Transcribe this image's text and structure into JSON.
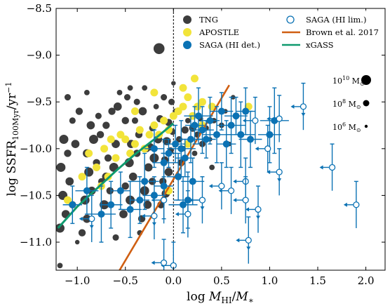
{
  "chart_data": {
    "type": "scatter",
    "xlabel": "log M_HI/M_*",
    "ylabel": "log SSFR_100Myr/yr^-1",
    "xlim": [
      -1.22,
      2.2
    ],
    "ylim": [
      -11.3,
      -8.5
    ],
    "xticks": [
      "−1.0",
      "−0.5",
      "0.0",
      "0.5",
      "1.0",
      "1.5",
      "2.0"
    ],
    "xtick_values": [
      -1.0,
      -0.5,
      0.0,
      0.5,
      1.0,
      1.5,
      2.0
    ],
    "yticks": [
      "−8.5",
      "−9.0",
      "−9.5",
      "−10.0",
      "−10.5",
      "−11.0"
    ],
    "ytick_values": [
      -8.5,
      -9.0,
      -9.5,
      -10.0,
      -10.5,
      -11.0
    ],
    "grid": false,
    "legend_position": "top-right",
    "vertical_reference_line": 0.0,
    "legend": [
      "TNG",
      "APOSTLE",
      "SAGA (HI det.)",
      "SAGA (HI lim.)",
      "Brown et al. 2017",
      "xGASS"
    ],
    "colors": {
      "TNG": "#3d3d3d",
      "APOSTLE": "#f2e43a",
      "SAGA": "#0b72b4",
      "Brown": "#d05f12",
      "xGASS": "#0f9a6e"
    },
    "size_legend": [
      "10^10 M_⊙",
      "10^8 M_⊙",
      "10^6 M_⊙"
    ],
    "series": [
      {
        "name": "TNG",
        "marker": "filled-circle",
        "points": [
          [
            -1.18,
            -10.85
          ],
          [
            -1.12,
            -10.7
          ],
          [
            -1.05,
            -10.6
          ],
          [
            -1.15,
            -10.5
          ],
          [
            -1.08,
            -10.35
          ],
          [
            -1.17,
            -10.2
          ],
          [
            -1.1,
            -10.05
          ],
          [
            -1.02,
            -9.95
          ],
          [
            -1.14,
            -9.9
          ],
          [
            -1.05,
            -9.7
          ],
          [
            -0.98,
            -9.6
          ],
          [
            -1.1,
            -9.45
          ],
          [
            -0.95,
            -10.9
          ],
          [
            -0.9,
            -10.75
          ],
          [
            -0.92,
            -10.55
          ],
          [
            -0.85,
            -10.45
          ],
          [
            -0.88,
            -10.25
          ],
          [
            -0.8,
            -10.15
          ],
          [
            -0.9,
            -10.05
          ],
          [
            -0.83,
            -9.9
          ],
          [
            -0.76,
            -9.85
          ],
          [
            -0.86,
            -9.75
          ],
          [
            -0.78,
            -9.65
          ],
          [
            -0.7,
            -9.75
          ],
          [
            -0.72,
            -10.6
          ],
          [
            -0.66,
            -10.45
          ],
          [
            -0.7,
            -10.3
          ],
          [
            -0.62,
            -10.2
          ],
          [
            -0.68,
            -10.1
          ],
          [
            -0.6,
            -9.95
          ],
          [
            -0.55,
            -9.85
          ],
          [
            -0.64,
            -9.6
          ],
          [
            -0.58,
            -9.55
          ],
          [
            -0.5,
            -9.7
          ],
          [
            -0.48,
            -9.45
          ],
          [
            -0.56,
            -9.4
          ],
          [
            -0.52,
            -10.7
          ],
          [
            -0.45,
            -10.55
          ],
          [
            -0.5,
            -10.4
          ],
          [
            -0.42,
            -10.3
          ],
          [
            -0.46,
            -10.15
          ],
          [
            -0.38,
            -10.05
          ],
          [
            -0.44,
            -9.95
          ],
          [
            -0.36,
            -9.85
          ],
          [
            -0.4,
            -9.7
          ],
          [
            -0.32,
            -9.6
          ],
          [
            -0.38,
            -9.5
          ],
          [
            -0.3,
            -9.35
          ],
          [
            -0.33,
            -10.75
          ],
          [
            -0.27,
            -10.6
          ],
          [
            -0.3,
            -10.45
          ],
          [
            -0.22,
            -10.35
          ],
          [
            -0.26,
            -10.2
          ],
          [
            -0.2,
            -10.1
          ],
          [
            -0.24,
            -9.98
          ],
          [
            -0.16,
            -9.9
          ],
          [
            -0.22,
            -9.78
          ],
          [
            -0.14,
            -9.68
          ],
          [
            -0.18,
            -9.55
          ],
          [
            -0.1,
            -9.45
          ],
          [
            -0.13,
            -10.6
          ],
          [
            -0.08,
            -10.48
          ],
          [
            -0.11,
            -10.35
          ],
          [
            -0.05,
            -10.25
          ],
          [
            -0.09,
            -10.12
          ],
          [
            -0.03,
            -10.02
          ],
          [
            -0.07,
            -9.92
          ],
          [
            -0.01,
            -9.82
          ],
          [
            -0.05,
            -9.72
          ],
          [
            0.02,
            -9.6
          ],
          [
            -0.02,
            -9.5
          ],
          [
            0.05,
            -10.3
          ],
          [
            0.08,
            -10.15
          ],
          [
            0.1,
            -10.0
          ],
          [
            0.06,
            -9.9
          ],
          [
            0.12,
            -9.8
          ],
          [
            0.15,
            -9.7
          ],
          [
            0.18,
            -9.9
          ],
          [
            0.2,
            -9.78
          ],
          [
            0.22,
            -10.05
          ],
          [
            0.25,
            -9.85
          ],
          [
            0.28,
            -9.68
          ],
          [
            0.3,
            -9.95
          ],
          [
            0.34,
            -9.78
          ],
          [
            0.38,
            -9.9
          ],
          [
            0.42,
            -9.7
          ],
          [
            0.46,
            -9.85
          ],
          [
            0.5,
            -9.75
          ],
          [
            0.54,
            -9.6
          ],
          [
            0.58,
            -9.95
          ],
          [
            -0.15,
            -8.93
          ],
          [
            -0.45,
            -9.35
          ],
          [
            -0.9,
            -9.4
          ],
          [
            -1.0,
            -11.0
          ],
          [
            -1.18,
            -11.25
          ],
          [
            -0.6,
            -10.95
          ],
          [
            -0.35,
            -10.9
          ],
          [
            -0.75,
            -10.35
          ],
          [
            -0.28,
            -10.0
          ],
          [
            0.0,
            -9.3
          ],
          [
            0.62,
            -9.45
          ],
          [
            0.4,
            -10.2
          ]
        ],
        "relative_sizes": [
          1.0,
          0.9,
          0.8,
          1.0,
          0.9,
          1.0,
          0.8,
          0.9,
          1.0,
          0.7,
          0.8,
          0.7,
          0.8,
          0.9,
          1.0,
          0.9,
          1.0,
          0.8,
          0.9,
          1.0,
          0.8,
          0.9,
          0.7,
          0.8,
          1.0,
          0.8,
          0.9,
          1.0,
          0.8,
          0.9,
          0.7,
          0.8,
          0.9,
          0.8,
          0.7,
          0.6,
          0.9,
          1.0,
          0.8,
          0.9,
          1.0,
          0.8,
          0.9,
          0.8,
          0.7,
          0.9,
          0.7,
          0.6,
          0.8,
          0.9,
          1.0,
          0.8,
          0.9,
          1.0,
          0.8,
          0.9,
          0.7,
          0.8,
          0.6,
          0.7,
          0.8,
          0.9,
          0.8,
          0.9,
          0.8,
          0.7,
          0.9,
          0.7,
          0.8,
          0.6,
          0.7,
          0.7,
          0.8,
          0.6,
          0.7,
          0.8,
          0.6,
          0.7,
          0.8,
          0.6,
          0.7,
          0.6,
          0.7,
          0.6,
          0.5,
          0.6,
          0.5,
          0.6,
          0.5,
          0.5,
          1.2,
          0.6,
          0.6,
          0.5,
          0.6,
          0.7,
          0.6,
          0.7,
          0.8,
          0.5,
          0.5,
          0.6
        ]
      },
      {
        "name": "APOSTLE",
        "marker": "filled-circle",
        "points": [
          [
            -1.1,
            -10.55
          ],
          [
            -0.95,
            -10.3
          ],
          [
            -0.88,
            -10.05
          ],
          [
            -0.8,
            -10.2
          ],
          [
            -0.72,
            -10.0
          ],
          [
            -0.65,
            -9.9
          ],
          [
            -0.6,
            -10.1
          ],
          [
            -0.55,
            -9.85
          ],
          [
            -0.5,
            -9.9
          ],
          [
            -0.45,
            -10.05
          ],
          [
            -0.4,
            -9.95
          ],
          [
            -0.35,
            -9.8
          ],
          [
            -0.3,
            -10.0
          ],
          [
            -0.25,
            -9.85
          ],
          [
            -0.2,
            -9.75
          ],
          [
            -0.15,
            -9.85
          ],
          [
            -0.1,
            -9.7
          ],
          [
            -0.05,
            -9.8
          ],
          [
            0.0,
            -9.65
          ],
          [
            0.05,
            -9.6
          ],
          [
            0.1,
            -9.55
          ],
          [
            0.15,
            -9.45
          ],
          [
            0.2,
            -9.65
          ],
          [
            0.25,
            -9.55
          ],
          [
            -0.2,
            -9.4
          ],
          [
            -0.4,
            -9.6
          ],
          [
            0.3,
            -9.5
          ],
          [
            -0.75,
            -10.4
          ],
          [
            -0.68,
            -10.3
          ],
          [
            0.1,
            -9.35
          ],
          [
            0.22,
            -9.25
          ],
          [
            0.3,
            -9.75
          ],
          [
            0.4,
            -9.55
          ],
          [
            -0.05,
            -10.45
          ],
          [
            0.15,
            -9.95
          ],
          [
            0.78,
            -9.55
          ]
        ]
      },
      {
        "name": "SAGA (HI det.)",
        "marker": "filled-circle-errorbar",
        "points": [
          [
            -0.2,
            -10.0
          ],
          [
            -0.1,
            -10.15
          ],
          [
            -0.05,
            -10.05
          ],
          [
            0.02,
            -9.95
          ],
          [
            0.08,
            -10.0
          ],
          [
            0.12,
            -10.1
          ],
          [
            0.18,
            -9.9
          ],
          [
            0.22,
            -9.75
          ],
          [
            0.26,
            -9.65
          ],
          [
            0.3,
            -9.8
          ],
          [
            0.34,
            -9.9
          ],
          [
            0.38,
            -9.7
          ],
          [
            0.45,
            -9.85
          ],
          [
            0.5,
            -9.6
          ],
          [
            0.55,
            -9.95
          ],
          [
            0.6,
            -9.75
          ],
          [
            0.65,
            -9.65
          ],
          [
            0.7,
            -9.85
          ],
          [
            0.75,
            -9.6
          ],
          [
            0.8,
            -9.9
          ],
          [
            1.05,
            -9.7
          ],
          [
            1.0,
            -9.85
          ],
          [
            -0.45,
            -10.65
          ],
          [
            -0.35,
            -10.55
          ],
          [
            -0.3,
            -10.35
          ],
          [
            -0.2,
            -10.5
          ],
          [
            -0.1,
            -10.4
          ],
          [
            0.05,
            -10.3
          ],
          [
            0.15,
            -10.55
          ],
          [
            -0.55,
            -10.45
          ],
          [
            -0.65,
            -10.6
          ],
          [
            -0.75,
            -10.7
          ],
          [
            -1.05,
            -10.6
          ],
          [
            -0.9,
            -10.45
          ],
          [
            0.1,
            -10.6
          ],
          [
            0.2,
            -10.35
          ]
        ],
        "y_errors": [
          0.2,
          0.25,
          0.15,
          0.2,
          0.3,
          0.2,
          0.25,
          0.2,
          0.3,
          0.25,
          0.2,
          0.25,
          0.3,
          0.2,
          0.25,
          0.3,
          0.2,
          0.35,
          0.25,
          0.3,
          0.35,
          0.3,
          0.3,
          0.25,
          0.3,
          0.2,
          0.35,
          0.25,
          0.3,
          0.2,
          0.25,
          0.3,
          0.2,
          0.25,
          0.3,
          0.25
        ],
        "x_errors": [
          0.1,
          0.12,
          0.08,
          0.1,
          0.15,
          0.1,
          0.12,
          0.1,
          0.15,
          0.12,
          0.1,
          0.1,
          0.15,
          0.12,
          0.1,
          0.15,
          0.12,
          0.15,
          0.1,
          0.12,
          0.15,
          0.12,
          0.12,
          0.1,
          0.15,
          0.12,
          0.1,
          0.12,
          0.15,
          0.1,
          0.12,
          0.15,
          0.1,
          0.12,
          0.15,
          0.12
        ]
      },
      {
        "name": "SAGA (HI lim.)",
        "marker": "open-circle-arrow",
        "points": [
          [
            1.35,
            -9.55
          ],
          [
            1.1,
            -9.68
          ],
          [
            0.85,
            -9.7
          ],
          [
            1.1,
            -10.25
          ],
          [
            0.75,
            -10.35
          ],
          [
            0.6,
            -10.45
          ],
          [
            0.3,
            -10.55
          ],
          [
            0.15,
            -10.7
          ],
          [
            -0.1,
            -10.55
          ],
          [
            -0.2,
            -10.72
          ],
          [
            0.5,
            -10.4
          ],
          [
            0.75,
            -10.55
          ],
          [
            0.88,
            -10.65
          ],
          [
            1.9,
            -10.6
          ],
          [
            1.65,
            -10.2
          ],
          [
            0.78,
            -10.98
          ],
          [
            0.0,
            -11.25
          ],
          [
            -0.1,
            -11.22
          ],
          [
            -0.85,
            -10.75
          ],
          [
            0.98,
            -10.0
          ]
        ]
      },
      {
        "name": "Brown et al. 2017",
        "marker": "line",
        "x": [
          -0.56,
          0.58
        ],
        "y": [
          -11.3,
          -9.32
        ]
      },
      {
        "name": "xGASS",
        "marker": "line",
        "x": [
          -1.2,
          -1.0,
          -0.8,
          -0.6,
          -0.4,
          -0.2,
          0.0
        ],
        "y": [
          -10.85,
          -10.62,
          -10.43,
          -10.24,
          -10.06,
          -9.9,
          -9.73
        ]
      }
    ]
  }
}
